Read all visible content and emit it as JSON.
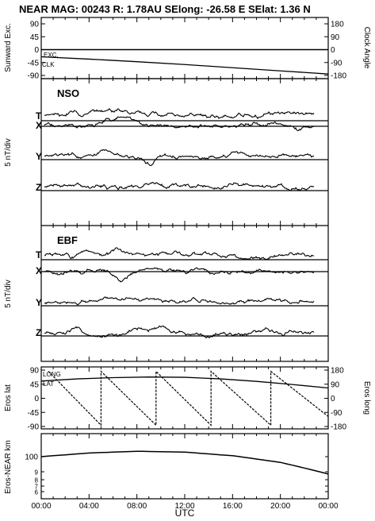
{
  "header": {
    "title": "NEAR MAG: 00243  R: 1.78AU  SElong:  -26.58 E  SElat:    1.36 N"
  },
  "chart_data": [
    {
      "type": "line",
      "panel": "top",
      "ylabel_left": "Sunward Exc.",
      "ylabel_right": "Clock Angle",
      "yticks_left": [
        "90",
        "45",
        "0",
        "-45",
        "-90"
      ],
      "yticks_right": [
        "180",
        "90",
        "0",
        "-90",
        "-180"
      ],
      "ylim": [
        -90,
        90
      ],
      "series": [
        {
          "name": "EXC.",
          "x": [
            0,
            24
          ],
          "y": [
            0,
            0
          ]
        },
        {
          "name": "CLK",
          "x": [
            0,
            4,
            8,
            12,
            16,
            20,
            24
          ],
          "y": [
            -25,
            -33,
            -42,
            -52,
            -63,
            -74,
            -85
          ]
        }
      ]
    },
    {
      "type": "line",
      "panel": "NSO",
      "label": "NSO",
      "ylabel": "5 nT/div",
      "components": [
        "T",
        "X",
        "Y",
        "Z"
      ]
    },
    {
      "type": "line",
      "panel": "EBF",
      "label": "EBF",
      "ylabel": "5 nT/div",
      "components": [
        "T",
        "X",
        "Y",
        "Z"
      ]
    },
    {
      "type": "line",
      "panel": "eros",
      "ylabel_left": "Eros lat",
      "ylabel_right": "Eros long",
      "yticks_left": [
        "90",
        "45",
        "0",
        "-45",
        "-90"
      ],
      "yticks_right": [
        "180",
        "90",
        "0",
        "-90",
        "-180"
      ],
      "ylim": [
        -90,
        90
      ],
      "series": [
        {
          "name": "LONG",
          "x": [
            0,
            3,
            6,
            9,
            12,
            15,
            18,
            21,
            24
          ],
          "y": [
            55,
            62,
            66,
            68,
            67,
            62,
            54,
            44,
            33
          ]
        },
        {
          "name": "LAT",
          "x": [
            0.6,
            5,
            5,
            9.6,
            9.6,
            14.2,
            14.2,
            19.2,
            19.2,
            24
          ],
          "y": [
            86,
            -86,
            86,
            -86,
            86,
            -86,
            86,
            -86,
            86,
            -58
          ]
        }
      ]
    },
    {
      "type": "line",
      "panel": "distance",
      "ylabel": "Eros-NEAR km",
      "yticks": [
        "100",
        "9",
        "8",
        "7",
        "6"
      ],
      "xlabel": "UTC",
      "xticks": [
        "00:00",
        "04:00",
        "08:00",
        "12:00",
        "16:00",
        "20:00",
        "00:00"
      ],
      "series": [
        {
          "x": [
            0,
            4,
            8,
            12,
            16,
            20,
            24
          ],
          "y": [
            97,
            101,
            103,
            102,
            98,
            91,
            80
          ]
        }
      ]
    }
  ],
  "labels": {
    "exc": "EXC.",
    "clk": "CLK",
    "long": "LONG",
    "lat": "LAT"
  }
}
